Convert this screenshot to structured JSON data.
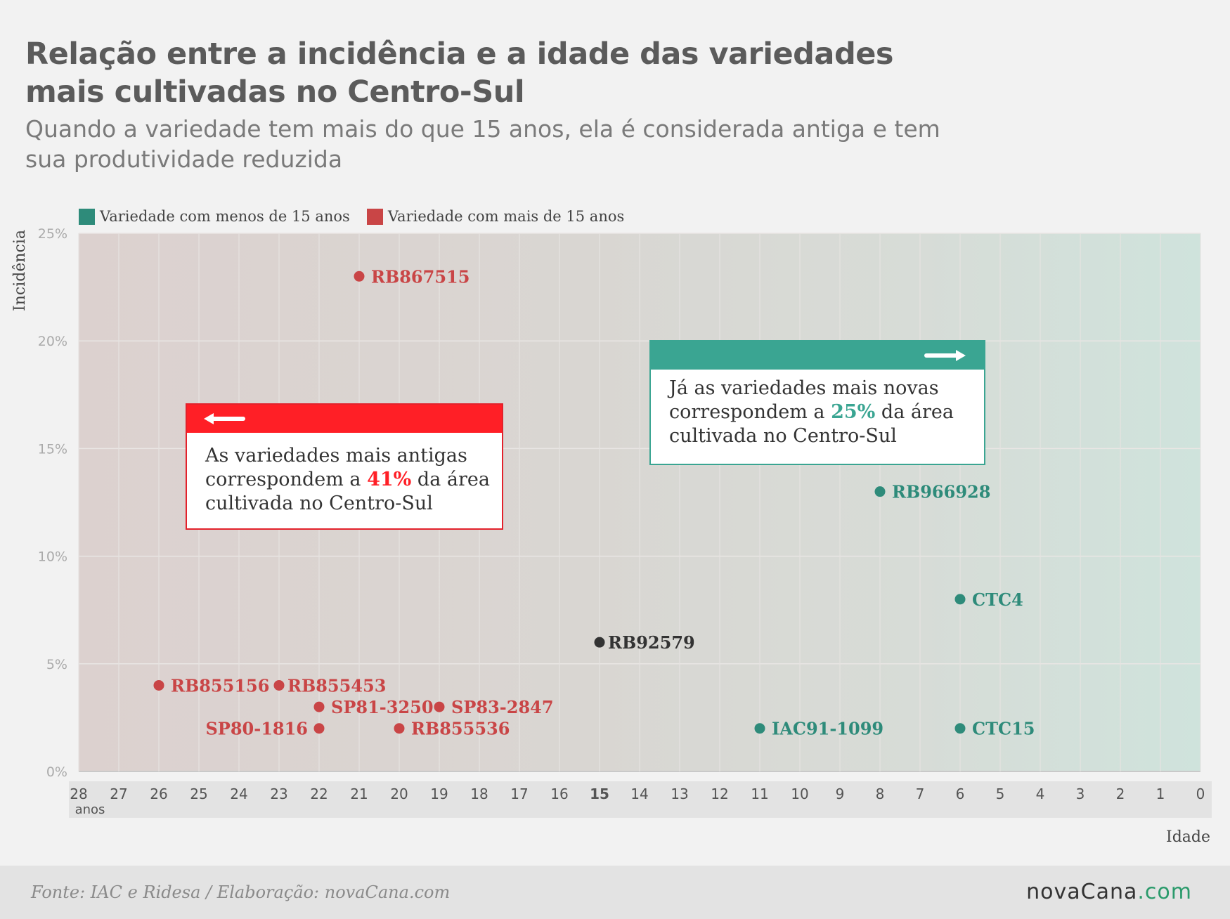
{
  "title_line1": "Relação entre a incidência e a idade das variedades",
  "title_line2": "mais cultivadas no Centro-Sul",
  "subtitle_line1": "Quando a variedade tem mais do que 15 anos, ela é considerada antiga e tem",
  "subtitle_line2": "sua produtividade reduzida",
  "legend": [
    {
      "label": "Variedade com menos de 15 anos",
      "color": "#2e8b7a"
    },
    {
      "label": "Variedade com mais de 15 anos",
      "color": "#c94546"
    }
  ],
  "callouts": {
    "old": {
      "line1": "As variedades mais antigas",
      "line2_pre": "correspondem a ",
      "highlight": "41%",
      "line2_post": " da área",
      "line3": "cultivada no Centro-Sul",
      "arrow": "left-arrow-icon"
    },
    "new": {
      "line1": "Já as variedades mais novas",
      "line2_pre": "correspondem a ",
      "highlight": "25%",
      "line2_post": " da área",
      "line3": "cultivada no Centro-Sul",
      "arrow": "right-arrow-icon"
    }
  },
  "footer": {
    "source": "Fonte: IAC e Ridesa / Elaboração: novaCana.com",
    "brand_main": "novaCana",
    "brand_suffix": ".com"
  },
  "chart_data": {
    "type": "scatter",
    "ylabel": "Incidência",
    "xlabel": "Idade",
    "x_unit_label": "anos",
    "x_reversed": true,
    "xlim": [
      28,
      0
    ],
    "ylim": [
      0,
      25
    ],
    "x_ticks": [
      28,
      27,
      26,
      25,
      24,
      23,
      22,
      21,
      20,
      19,
      18,
      17,
      16,
      15,
      14,
      13,
      12,
      11,
      10,
      9,
      8,
      7,
      6,
      5,
      4,
      3,
      2,
      1,
      0
    ],
    "y_ticks": [
      "0%",
      "5%",
      "10%",
      "15%",
      "20%",
      "25%"
    ],
    "grid": true,
    "legend_position": "top-left",
    "colors": {
      "old": "#c94546",
      "new": "#2e8b7a",
      "threshold": "#333333"
    },
    "points": [
      {
        "label": "RB867515",
        "age": 21,
        "incidence": 23,
        "group": "old"
      },
      {
        "label": "RB855156",
        "age": 26,
        "incidence": 4,
        "group": "old"
      },
      {
        "label": "RB855453",
        "age": 23,
        "incidence": 4,
        "group": "old"
      },
      {
        "label": "SP81-3250",
        "age": 22,
        "incidence": 3,
        "group": "old"
      },
      {
        "label": "SP80-1816",
        "age": 22,
        "incidence": 2,
        "group": "old"
      },
      {
        "label": "SP83-2847",
        "age": 19,
        "incidence": 3,
        "group": "old"
      },
      {
        "label": "RB855536",
        "age": 20,
        "incidence": 2,
        "group": "old"
      },
      {
        "label": "RB92579",
        "age": 15,
        "incidence": 6,
        "group": "threshold"
      },
      {
        "label": "RB966928",
        "age": 8,
        "incidence": 13,
        "group": "new"
      },
      {
        "label": "CTC4",
        "age": 6,
        "incidence": 8,
        "group": "new"
      },
      {
        "label": "IAC91-1099",
        "age": 11,
        "incidence": 2,
        "group": "new"
      },
      {
        "label": "CTC15",
        "age": 6,
        "incidence": 2,
        "group": "new"
      }
    ]
  }
}
